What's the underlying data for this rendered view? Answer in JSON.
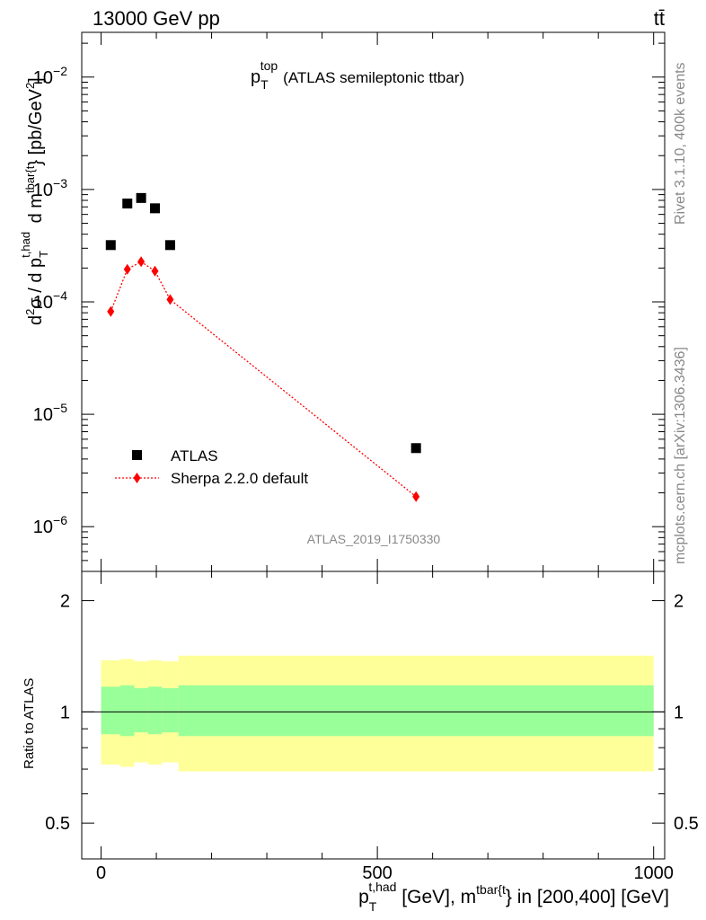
{
  "header": {
    "energy_label": "13000 GeV pp",
    "process_label": "tt̄",
    "side_label_top": "Rivet 3.1.10,  400k events",
    "side_label_bottom": "mcplots.cern.ch [arXiv:1306.3436]",
    "analysis_id": "ATLAS_2019_I1750330"
  },
  "chart_data": [
    {
      "type": "scatter",
      "panel": "main",
      "title": "p_T^top (ATLAS semileptonic ttbar)",
      "title_parts": {
        "main": "p",
        "sub": "T",
        "sup": "top",
        "rest": "(ATLAS semileptonic ttbar)"
      },
      "ylabel": "d²σ / d p_T^{t,had} d m^{tbar{t}} [pb/GeV²]",
      "yscale": "log",
      "xlim": [
        -35,
        1020
      ],
      "ylim": [
        4e-07,
        0.025
      ],
      "yticks": [
        1e-06,
        1e-05,
        0.0001,
        0.001,
        0.01
      ],
      "ytick_labels": [
        {
          "base": "10",
          "exp": "−6"
        },
        {
          "base": "10",
          "exp": "−5"
        },
        {
          "base": "10",
          "exp": "−4"
        },
        {
          "base": "10",
          "exp": "−3"
        },
        {
          "base": "10",
          "exp": "−2"
        }
      ],
      "grid": false,
      "legend_position": "lower-left",
      "series": [
        {
          "name": "ATLAS",
          "marker": "square",
          "color": "#000000",
          "x": [
            17.5,
            47.5,
            72.5,
            97.5,
            125,
            570
          ],
          "y": [
            0.00032,
            0.00075,
            0.00084,
            0.00068,
            0.00032,
            5e-06
          ]
        },
        {
          "name": "Sherpa 2.2.0 default",
          "marker": "diamond",
          "line": "dotted",
          "color": "#ff0000",
          "x": [
            17.5,
            47.5,
            72.5,
            97.5,
            125,
            570
          ],
          "y": [
            8.2e-05,
            0.000195,
            0.000228,
            0.000188,
            0.000105,
            1.85e-06
          ]
        }
      ]
    },
    {
      "type": "area",
      "panel": "ratio",
      "ylabel": "Ratio to ATLAS",
      "xlabel": "p_T^{t,had} [GeV], m^{tbar{t}} in [200,400] [GeV]",
      "xlabel_parts": {
        "p": "p",
        "sub": "T",
        "sup": "t,had",
        "mid": " [GeV], m",
        "sup2": "tbar{t",
        "tail": "} in [200,400] [GeV]"
      },
      "xlim": [
        -35,
        1020
      ],
      "ylim": [
        0.4,
        2.4
      ],
      "yticks": [
        0.5,
        1,
        2
      ],
      "ytick_labels": [
        "0.5",
        "1",
        "2"
      ],
      "xticks": [
        0,
        500,
        1000
      ],
      "xtick_labels": [
        "0",
        "500",
        "1000"
      ],
      "reference_line": 1,
      "bins": [
        {
          "x0": 0,
          "x1": 35,
          "inner": [
            0.87,
            1.17
          ],
          "outer": [
            0.72,
            1.38
          ]
        },
        {
          "x0": 35,
          "x1": 60,
          "inner": [
            0.86,
            1.18
          ],
          "outer": [
            0.71,
            1.39
          ]
        },
        {
          "x0": 60,
          "x1": 85,
          "inner": [
            0.88,
            1.16
          ],
          "outer": [
            0.73,
            1.37
          ]
        },
        {
          "x0": 85,
          "x1": 110,
          "inner": [
            0.87,
            1.17
          ],
          "outer": [
            0.72,
            1.38
          ]
        },
        {
          "x0": 110,
          "x1": 140,
          "inner": [
            0.88,
            1.16
          ],
          "outer": [
            0.73,
            1.37
          ]
        },
        {
          "x0": 140,
          "x1": 1000,
          "inner": [
            0.86,
            1.18
          ],
          "outer": [
            0.69,
            1.42
          ]
        }
      ],
      "band_colors": {
        "inner": "#99ff99",
        "outer": "#ffff99"
      }
    }
  ]
}
